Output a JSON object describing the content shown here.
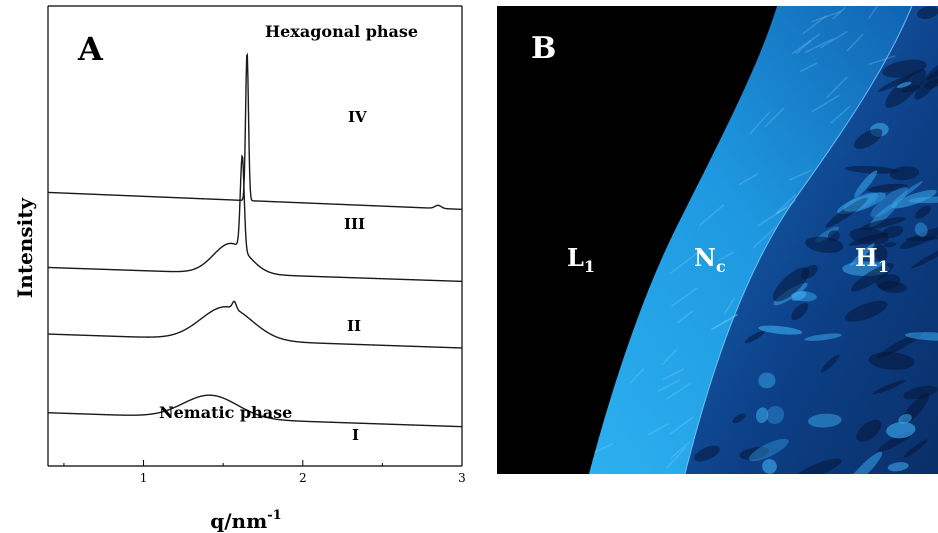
{
  "panel_a": {
    "letter": "A",
    "ylabel": "Intensity",
    "xlabel_base": "q/nm",
    "xlabel_sup": "-1",
    "annotations": {
      "top": "Hexagonal phase",
      "bottom": "Nematic phase"
    }
  },
  "panel_b": {
    "letter": "B",
    "regions": [
      {
        "main": "L",
        "sub": "1"
      },
      {
        "main": "N",
        "sub": "c"
      },
      {
        "main": "H",
        "sub": "1"
      }
    ],
    "colors": {
      "background": "#000000",
      "nematic_band": "#1ea2ea",
      "hexagonal_texture": "#0b3a7a"
    }
  },
  "chart_data": {
    "type": "line",
    "title": "",
    "xlabel": "q/nm-1",
    "ylabel": "Intensity",
    "xlim": [
      0.4,
      3.0
    ],
    "xticks": [
      1,
      2,
      3
    ],
    "y_axis_ticks": false,
    "curve_stroke": "#1a1a1a",
    "series": [
      {
        "name": "I",
        "offset": 0.0,
        "base_start": 0.28,
        "base_end": 0.05,
        "peaks": [
          {
            "q": 1.42,
            "height": 0.38,
            "width": 0.17
          }
        ]
      },
      {
        "name": "II",
        "offset": 1.3,
        "base_start": 0.28,
        "base_end": 0.05,
        "peaks": [
          {
            "q": 1.52,
            "height": 0.55,
            "width": 0.16
          },
          {
            "q": 1.57,
            "height": 0.12,
            "width": 0.012
          }
        ]
      },
      {
        "name": "III",
        "offset": 2.4,
        "base_start": 0.28,
        "base_end": 0.05,
        "peaks": [
          {
            "q": 1.55,
            "height": 0.5,
            "width": 0.11
          },
          {
            "q": 1.62,
            "height": 1.55,
            "width": 0.012
          }
        ]
      },
      {
        "name": "IV",
        "offset": 3.6,
        "base_start": 0.32,
        "base_end": 0.04,
        "peaks": [
          {
            "q": 1.65,
            "height": 2.45,
            "width": 0.009
          },
          {
            "q": 2.85,
            "height": 0.05,
            "width": 0.02
          }
        ]
      }
    ]
  }
}
